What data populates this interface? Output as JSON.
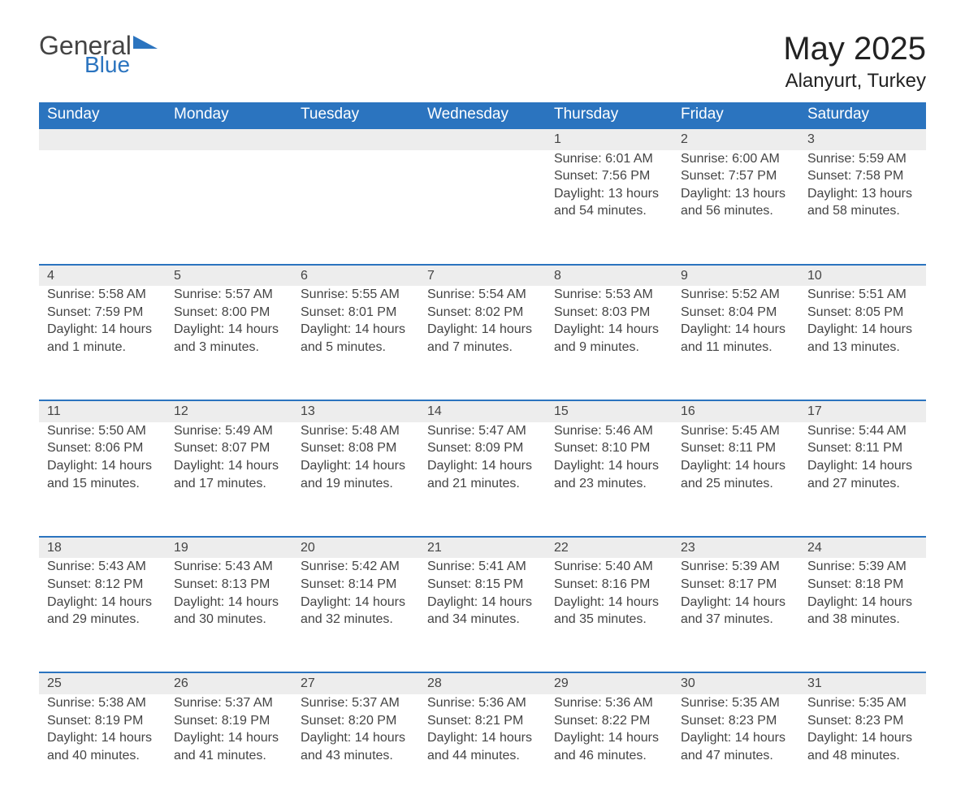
{
  "logo": {
    "word1": "General",
    "word2": "Blue",
    "triangle_color": "#2b74bf",
    "text_dark": "#444444",
    "text_blue": "#2b74bf"
  },
  "title": {
    "month_year": "May 2025",
    "location": "Alanyurt, Turkey"
  },
  "colors": {
    "header_bg": "#2b74bf",
    "header_text": "#ffffff",
    "daynum_bg": "#ededed",
    "daynum_border": "#2b74bf",
    "body_text": "#444444",
    "page_bg": "#ffffff"
  },
  "weekdays": [
    "Sunday",
    "Monday",
    "Tuesday",
    "Wednesday",
    "Thursday",
    "Friday",
    "Saturday"
  ],
  "weeks": [
    [
      null,
      null,
      null,
      null,
      {
        "day": "1",
        "sunrise": "Sunrise: 6:01 AM",
        "sunset": "Sunset: 7:56 PM",
        "dl1": "Daylight: 13 hours",
        "dl2": "and 54 minutes."
      },
      {
        "day": "2",
        "sunrise": "Sunrise: 6:00 AM",
        "sunset": "Sunset: 7:57 PM",
        "dl1": "Daylight: 13 hours",
        "dl2": "and 56 minutes."
      },
      {
        "day": "3",
        "sunrise": "Sunrise: 5:59 AM",
        "sunset": "Sunset: 7:58 PM",
        "dl1": "Daylight: 13 hours",
        "dl2": "and 58 minutes."
      }
    ],
    [
      {
        "day": "4",
        "sunrise": "Sunrise: 5:58 AM",
        "sunset": "Sunset: 7:59 PM",
        "dl1": "Daylight: 14 hours",
        "dl2": "and 1 minute."
      },
      {
        "day": "5",
        "sunrise": "Sunrise: 5:57 AM",
        "sunset": "Sunset: 8:00 PM",
        "dl1": "Daylight: 14 hours",
        "dl2": "and 3 minutes."
      },
      {
        "day": "6",
        "sunrise": "Sunrise: 5:55 AM",
        "sunset": "Sunset: 8:01 PM",
        "dl1": "Daylight: 14 hours",
        "dl2": "and 5 minutes."
      },
      {
        "day": "7",
        "sunrise": "Sunrise: 5:54 AM",
        "sunset": "Sunset: 8:02 PM",
        "dl1": "Daylight: 14 hours",
        "dl2": "and 7 minutes."
      },
      {
        "day": "8",
        "sunrise": "Sunrise: 5:53 AM",
        "sunset": "Sunset: 8:03 PM",
        "dl1": "Daylight: 14 hours",
        "dl2": "and 9 minutes."
      },
      {
        "day": "9",
        "sunrise": "Sunrise: 5:52 AM",
        "sunset": "Sunset: 8:04 PM",
        "dl1": "Daylight: 14 hours",
        "dl2": "and 11 minutes."
      },
      {
        "day": "10",
        "sunrise": "Sunrise: 5:51 AM",
        "sunset": "Sunset: 8:05 PM",
        "dl1": "Daylight: 14 hours",
        "dl2": "and 13 minutes."
      }
    ],
    [
      {
        "day": "11",
        "sunrise": "Sunrise: 5:50 AM",
        "sunset": "Sunset: 8:06 PM",
        "dl1": "Daylight: 14 hours",
        "dl2": "and 15 minutes."
      },
      {
        "day": "12",
        "sunrise": "Sunrise: 5:49 AM",
        "sunset": "Sunset: 8:07 PM",
        "dl1": "Daylight: 14 hours",
        "dl2": "and 17 minutes."
      },
      {
        "day": "13",
        "sunrise": "Sunrise: 5:48 AM",
        "sunset": "Sunset: 8:08 PM",
        "dl1": "Daylight: 14 hours",
        "dl2": "and 19 minutes."
      },
      {
        "day": "14",
        "sunrise": "Sunrise: 5:47 AM",
        "sunset": "Sunset: 8:09 PM",
        "dl1": "Daylight: 14 hours",
        "dl2": "and 21 minutes."
      },
      {
        "day": "15",
        "sunrise": "Sunrise: 5:46 AM",
        "sunset": "Sunset: 8:10 PM",
        "dl1": "Daylight: 14 hours",
        "dl2": "and 23 minutes."
      },
      {
        "day": "16",
        "sunrise": "Sunrise: 5:45 AM",
        "sunset": "Sunset: 8:11 PM",
        "dl1": "Daylight: 14 hours",
        "dl2": "and 25 minutes."
      },
      {
        "day": "17",
        "sunrise": "Sunrise: 5:44 AM",
        "sunset": "Sunset: 8:11 PM",
        "dl1": "Daylight: 14 hours",
        "dl2": "and 27 minutes."
      }
    ],
    [
      {
        "day": "18",
        "sunrise": "Sunrise: 5:43 AM",
        "sunset": "Sunset: 8:12 PM",
        "dl1": "Daylight: 14 hours",
        "dl2": "and 29 minutes."
      },
      {
        "day": "19",
        "sunrise": "Sunrise: 5:43 AM",
        "sunset": "Sunset: 8:13 PM",
        "dl1": "Daylight: 14 hours",
        "dl2": "and 30 minutes."
      },
      {
        "day": "20",
        "sunrise": "Sunrise: 5:42 AM",
        "sunset": "Sunset: 8:14 PM",
        "dl1": "Daylight: 14 hours",
        "dl2": "and 32 minutes."
      },
      {
        "day": "21",
        "sunrise": "Sunrise: 5:41 AM",
        "sunset": "Sunset: 8:15 PM",
        "dl1": "Daylight: 14 hours",
        "dl2": "and 34 minutes."
      },
      {
        "day": "22",
        "sunrise": "Sunrise: 5:40 AM",
        "sunset": "Sunset: 8:16 PM",
        "dl1": "Daylight: 14 hours",
        "dl2": "and 35 minutes."
      },
      {
        "day": "23",
        "sunrise": "Sunrise: 5:39 AM",
        "sunset": "Sunset: 8:17 PM",
        "dl1": "Daylight: 14 hours",
        "dl2": "and 37 minutes."
      },
      {
        "day": "24",
        "sunrise": "Sunrise: 5:39 AM",
        "sunset": "Sunset: 8:18 PM",
        "dl1": "Daylight: 14 hours",
        "dl2": "and 38 minutes."
      }
    ],
    [
      {
        "day": "25",
        "sunrise": "Sunrise: 5:38 AM",
        "sunset": "Sunset: 8:19 PM",
        "dl1": "Daylight: 14 hours",
        "dl2": "and 40 minutes."
      },
      {
        "day": "26",
        "sunrise": "Sunrise: 5:37 AM",
        "sunset": "Sunset: 8:19 PM",
        "dl1": "Daylight: 14 hours",
        "dl2": "and 41 minutes."
      },
      {
        "day": "27",
        "sunrise": "Sunrise: 5:37 AM",
        "sunset": "Sunset: 8:20 PM",
        "dl1": "Daylight: 14 hours",
        "dl2": "and 43 minutes."
      },
      {
        "day": "28",
        "sunrise": "Sunrise: 5:36 AM",
        "sunset": "Sunset: 8:21 PM",
        "dl1": "Daylight: 14 hours",
        "dl2": "and 44 minutes."
      },
      {
        "day": "29",
        "sunrise": "Sunrise: 5:36 AM",
        "sunset": "Sunset: 8:22 PM",
        "dl1": "Daylight: 14 hours",
        "dl2": "and 46 minutes."
      },
      {
        "day": "30",
        "sunrise": "Sunrise: 5:35 AM",
        "sunset": "Sunset: 8:23 PM",
        "dl1": "Daylight: 14 hours",
        "dl2": "and 47 minutes."
      },
      {
        "day": "31",
        "sunrise": "Sunrise: 5:35 AM",
        "sunset": "Sunset: 8:23 PM",
        "dl1": "Daylight: 14 hours",
        "dl2": "and 48 minutes."
      }
    ]
  ]
}
